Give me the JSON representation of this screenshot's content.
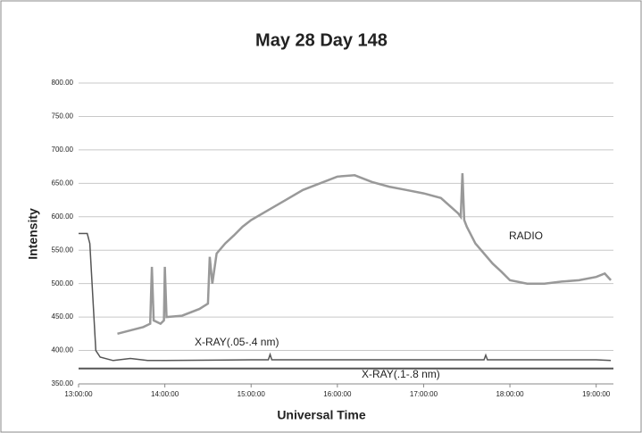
{
  "chart_data": {
    "type": "line",
    "title": "May 28 Day 148",
    "xlabel": "Universal Time",
    "ylabel": "Intensity",
    "xlim": [
      13,
      19.2
    ],
    "ylim": [
      350,
      800
    ],
    "xticks": [
      {
        "value": 13,
        "label": "13:00:00"
      },
      {
        "value": 14,
        "label": "14:00:00"
      },
      {
        "value": 15,
        "label": "15:00:00"
      },
      {
        "value": 16,
        "label": "16:00:00"
      },
      {
        "value": 17,
        "label": "17:00:00"
      },
      {
        "value": 18,
        "label": "18:00:00"
      },
      {
        "value": 19,
        "label": "19:00:00"
      }
    ],
    "yticks": [
      {
        "value": 350,
        "label": "350.00"
      },
      {
        "value": 400,
        "label": "400.00"
      },
      {
        "value": 450,
        "label": "450.00"
      },
      {
        "value": 500,
        "label": "500.00"
      },
      {
        "value": 550,
        "label": "550.00"
      },
      {
        "value": 600,
        "label": "600.00"
      },
      {
        "value": 650,
        "label": "650.00"
      },
      {
        "value": 700,
        "label": "700.00"
      },
      {
        "value": 750,
        "label": "750.00"
      },
      {
        "value": 800,
        "label": "800.00"
      }
    ],
    "grid": true,
    "series": [
      {
        "name": "RADIO",
        "color": "#999999",
        "x": [
          13.45,
          13.6,
          13.75,
          13.83,
          13.85,
          13.87,
          13.95,
          13.99,
          14.0,
          14.02,
          14.2,
          14.4,
          14.5,
          14.52,
          14.55,
          14.6,
          14.7,
          14.8,
          14.9,
          15.0,
          15.2,
          15.4,
          15.6,
          15.8,
          16.0,
          16.2,
          16.4,
          16.6,
          16.8,
          17.0,
          17.2,
          17.4,
          17.43,
          17.45,
          17.47,
          17.5,
          17.6,
          17.7,
          17.8,
          17.9,
          18.0,
          18.2,
          18.4,
          18.6,
          18.8,
          19.0,
          19.1,
          19.17
        ],
        "values": [
          425,
          430,
          435,
          440,
          525,
          445,
          440,
          445,
          525,
          450,
          452,
          462,
          470,
          540,
          500,
          545,
          560,
          572,
          585,
          595,
          610,
          625,
          640,
          650,
          660,
          662,
          652,
          645,
          640,
          635,
          628,
          605,
          600,
          665,
          595,
          585,
          560,
          545,
          530,
          518,
          505,
          500,
          500,
          503,
          505,
          510,
          515,
          505
        ]
      },
      {
        "name": "X-RAY(.05-.4 nm)",
        "color": "#555555",
        "x": [
          13.0,
          13.1,
          13.13,
          13.2,
          13.25,
          13.4,
          13.6,
          13.8,
          14.0,
          15.0,
          15.2,
          15.22,
          15.24,
          16.0,
          17.0,
          17.7,
          17.72,
          17.74,
          18.0,
          19.0,
          19.17
        ],
        "values": [
          575,
          575,
          560,
          400,
          390,
          385,
          388,
          385,
          385,
          386,
          386,
          394,
          386,
          386,
          386,
          386,
          393,
          386,
          386,
          386,
          385
        ]
      },
      {
        "name": "X-RAY(.1-.8 nm)",
        "color": "#555555",
        "x": [
          13.0,
          19.2
        ],
        "values": [
          373,
          373
        ]
      }
    ]
  }
}
